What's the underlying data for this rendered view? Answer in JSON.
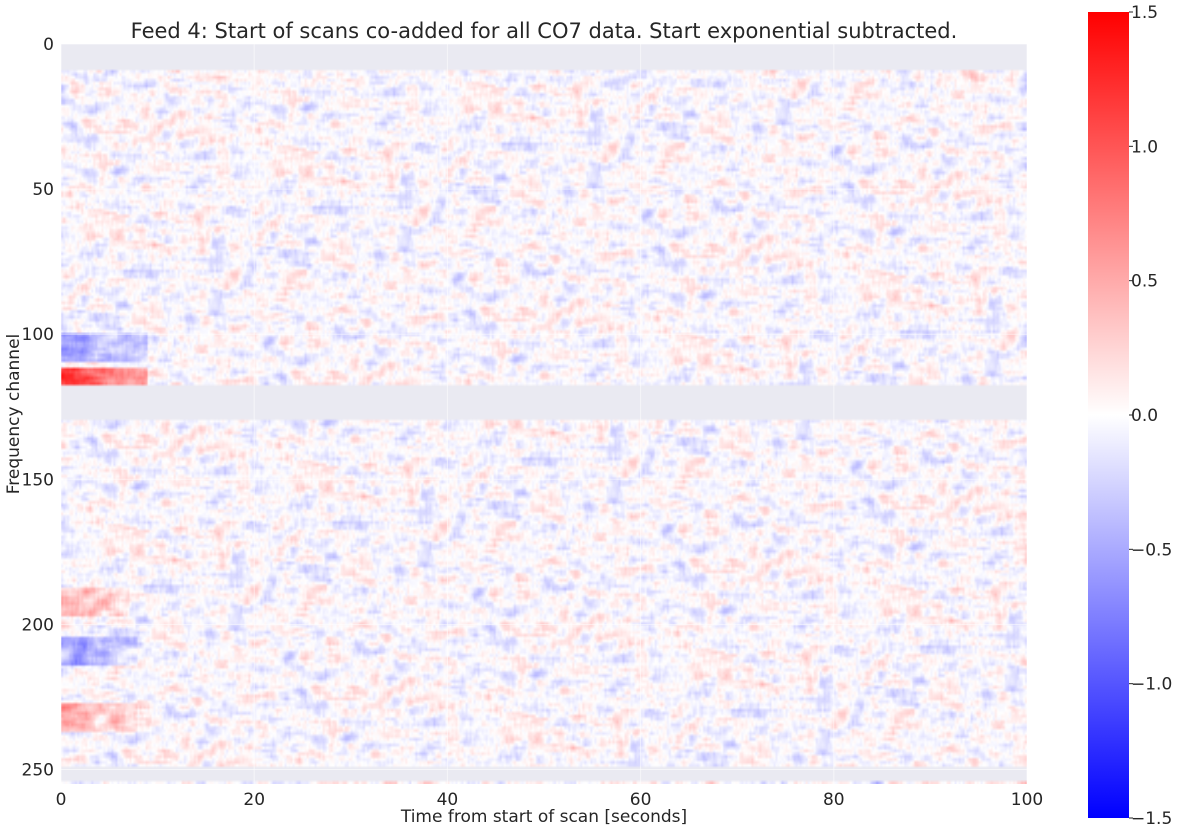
{
  "chart_data": {
    "type": "heatmap",
    "title": "Feed 4: Start of scans co-added for all CO7 data. Start exponential subtracted.",
    "xlabel": "Time from start of scan [seconds]",
    "ylabel": "Frequency channel",
    "xlim": [
      0,
      100
    ],
    "ylim": [
      255,
      0
    ],
    "xticks": [
      "0",
      "20",
      "40",
      "60",
      "80",
      "100"
    ],
    "xtick_values": [
      0,
      20,
      40,
      60,
      80,
      100
    ],
    "yticks": [
      "0",
      "50",
      "100",
      "150",
      "200",
      "250"
    ],
    "ytick_values": [
      0,
      50,
      100,
      150,
      200,
      250
    ],
    "grid": true,
    "colormap": "bwr",
    "colorbar": {
      "range": [
        -1.5,
        1.5
      ],
      "ticks": [
        "1.5",
        "1.0",
        "0.5",
        "0.0",
        "−0.5",
        "−1.0",
        "−1.5"
      ],
      "tick_values": [
        1.5,
        1.0,
        0.5,
        0.0,
        -0.5,
        -1.0,
        -1.5
      ]
    },
    "masked_channel_ranges": [
      [
        0,
        9
      ],
      [
        118,
        130
      ],
      [
        250,
        255
      ]
    ],
    "masked_color": "#eaeaf2",
    "noise_amplitude": 0.35,
    "features": [
      {
        "channels": [
          112,
          118
        ],
        "time": [
          0,
          9
        ],
        "value": 1.2
      },
      {
        "channels": [
          100,
          110
        ],
        "time": [
          0,
          9
        ],
        "value": -0.6
      },
      {
        "channels": [
          205,
          215
        ],
        "time": [
          0,
          8
        ],
        "value": -0.55
      },
      {
        "channels": [
          228,
          238
        ],
        "time": [
          0,
          8
        ],
        "value": 0.5
      },
      {
        "channels": [
          188,
          198
        ],
        "time": [
          0,
          7
        ],
        "value": 0.45
      }
    ]
  }
}
